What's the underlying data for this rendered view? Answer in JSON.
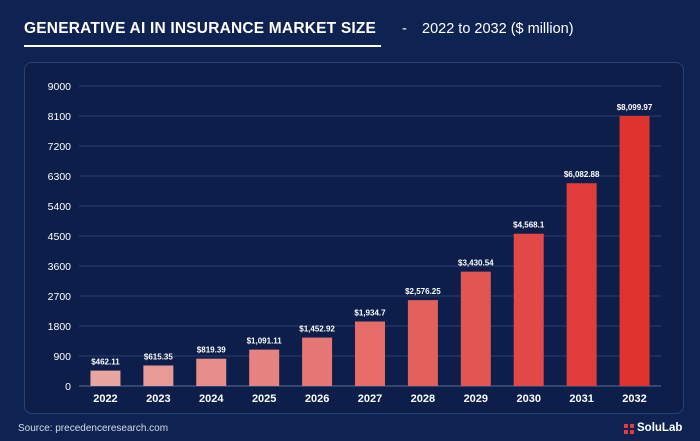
{
  "header": {
    "title": "GENERATIVE AI IN INSURANCE MARKET SIZE",
    "dash": "-",
    "subtitle": "2022 to 2032 ($ million)"
  },
  "footer": {
    "source": "Source: precedenceresearch.com",
    "brand": "SoluLab",
    "brand_icon": "solulab-logo-icon"
  },
  "colors": {
    "background": "#0f2352",
    "bar_start": "#e9a5a2",
    "bar_end": "#e0322f",
    "accent": "#e23c3c"
  },
  "chart_data": {
    "type": "bar",
    "title": "GENERATIVE AI IN INSURANCE MARKET SIZE",
    "subtitle": "2022 to 2032 ($ million)",
    "categories": [
      "2022",
      "2023",
      "2024",
      "2025",
      "2026",
      "2027",
      "2028",
      "2029",
      "2030",
      "2031",
      "2032"
    ],
    "values": [
      462.11,
      615.35,
      819.39,
      1091.11,
      1452.92,
      1934.7,
      2576.25,
      3430.54,
      4568.1,
      6082.88,
      8099.97
    ],
    "data_labels": [
      "$462.11",
      "$615.35",
      "$819.39",
      "$1,091.11",
      "$1,452.92",
      "$1,934.7",
      "$2,576.25",
      "$3,430.54",
      "$4,568.1",
      "$6,082.88",
      "$8,099.97"
    ],
    "ylim": [
      0,
      9000
    ],
    "yticks": [
      0,
      900,
      1800,
      2700,
      3600,
      4500,
      5400,
      6300,
      7200,
      8100,
      9000
    ],
    "ytick_labels": [
      "0",
      "900",
      "1800",
      "2700",
      "3600",
      "4500",
      "5400",
      "6300",
      "7200",
      "8100",
      "9000"
    ],
    "xlabel": "",
    "ylabel": "",
    "grid": true,
    "legend": "none"
  }
}
